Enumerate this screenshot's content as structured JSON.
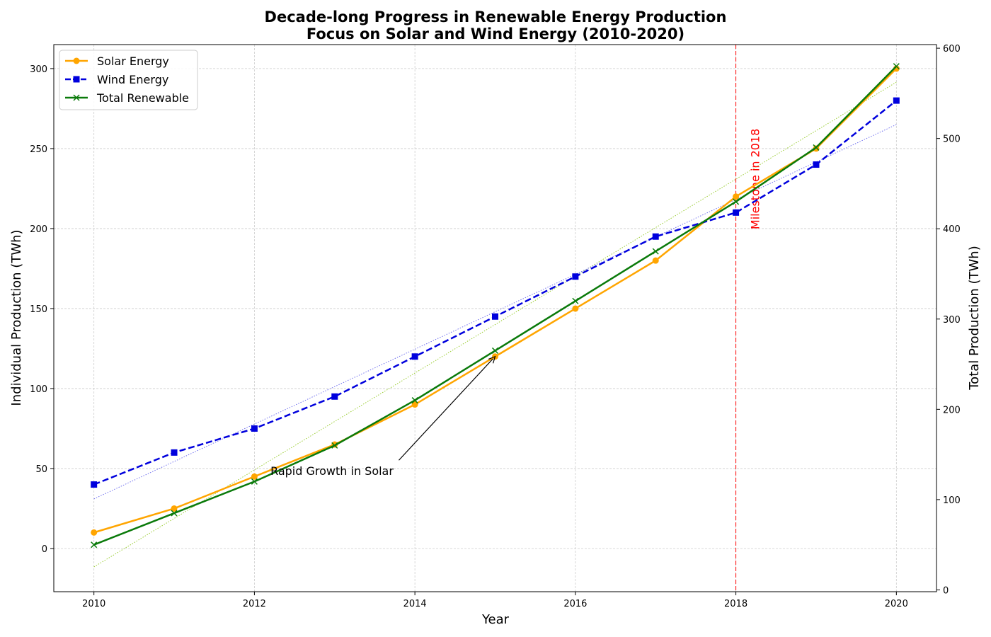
{
  "chart_data": {
    "type": "line",
    "title": "Decade-long Progress in Renewable Energy Production",
    "subtitle": "Focus on Solar and Wind Energy (2010-2020)",
    "xlabel": "Year",
    "ylabel_left": "Individual Production (TWh)",
    "ylabel_right": "Total Production (TWh)",
    "x": [
      2010,
      2011,
      2012,
      2013,
      2014,
      2015,
      2016,
      2017,
      2018,
      2019,
      2020
    ],
    "xlim": [
      2009.5,
      2020.5
    ],
    "ylim_left": [
      -27,
      315
    ],
    "ylim_right": [
      -2,
      604
    ],
    "x_ticks": [
      "2010",
      "2012",
      "2014",
      "2016",
      "2018",
      "2020"
    ],
    "y_ticks_left": [
      "0",
      "50",
      "100",
      "150",
      "200",
      "250",
      "300"
    ],
    "y_ticks_right": [
      "0",
      "100",
      "200",
      "300",
      "400",
      "500",
      "600"
    ],
    "grid": true,
    "legend_position": "top-left",
    "series": [
      {
        "name": "Solar Energy",
        "axis": "left",
        "color": "#FFA500",
        "style": "solid",
        "marker": "circle",
        "values": [
          10,
          25,
          45,
          65,
          90,
          120,
          150,
          180,
          220,
          250,
          300
        ]
      },
      {
        "name": "Wind Energy",
        "axis": "left",
        "color": "#0000DD",
        "style": "dashed",
        "marker": "square",
        "values": [
          40,
          60,
          75,
          95,
          120,
          145,
          170,
          195,
          210,
          240,
          280
        ]
      },
      {
        "name": "Total Renewable",
        "axis": "right",
        "color": "#0A7A0A",
        "style": "solid",
        "marker": "x",
        "values": [
          50,
          85,
          120,
          160,
          210,
          265,
          320,
          375,
          430,
          490,
          580
        ]
      }
    ],
    "trend_lines": [
      {
        "series": "Solar Energy",
        "axis": "left",
        "color": "#9ACD32",
        "x": [
          2010,
          2020
        ],
        "values": [
          -11.5,
          291.5
        ]
      },
      {
        "series": "Wind Energy",
        "axis": "left",
        "color": "#7070EE",
        "x": [
          2010,
          2020
        ],
        "values": [
          31,
          265
        ]
      }
    ],
    "annotations": [
      {
        "text": "Rapid Growth in Solar",
        "arrow_to_x": 2015,
        "arrow_to_y": 120,
        "text_x": 2012.2,
        "text_y": 49
      }
    ],
    "vertical_line": {
      "x": 2018,
      "label": "Milestone in 2018",
      "color": "#FF0000"
    }
  }
}
